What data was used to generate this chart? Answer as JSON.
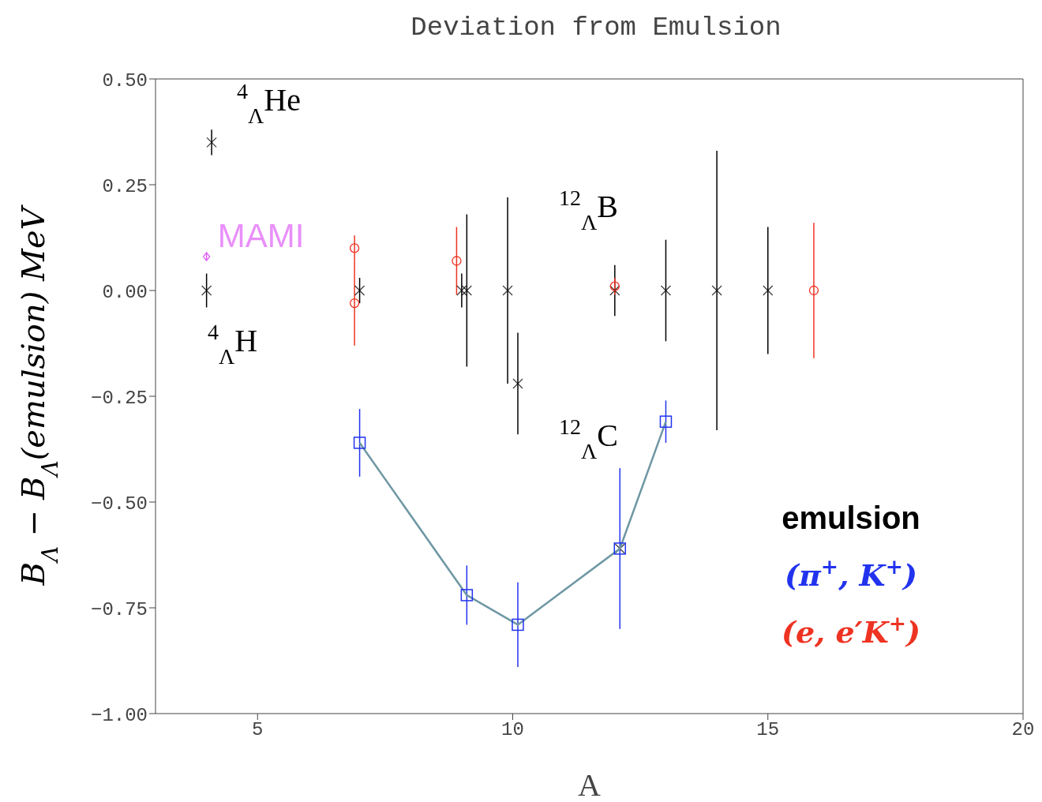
{
  "chart_data": {
    "type": "scatter",
    "title": "Deviation from Emulsion",
    "xlabel": "A",
    "ylabel": "B$_{Λ}$ − B$_{Λ}$(emulsion) MeV",
    "xlim": [
      3,
      20
    ],
    "xticks": [
      5,
      10,
      15,
      20
    ],
    "ylim": [
      -1,
      0.5
    ],
    "yticks": [
      {
        "value": -1,
        "label": "−1.00"
      },
      {
        "value": -0.75,
        "label": "−0.75"
      },
      {
        "value": -0.5,
        "label": "−0.50"
      },
      {
        "value": -0.25,
        "label": "−0.25"
      },
      {
        "value": 0,
        "label": "0.00"
      },
      {
        "value": 0.25,
        "label": "0.25"
      },
      {
        "value": 0.5,
        "label": "0.50"
      }
    ],
    "grid": false,
    "legend": "bottom right",
    "series": [
      {
        "name": "emulsion",
        "color": "#000000",
        "marker": "cross",
        "x": [
          4,
          4.1,
          7,
          9,
          9.1,
          9.9,
          10.1,
          12,
          12.1,
          13,
          14,
          15
        ],
        "values": [
          0,
          0.35,
          0,
          0,
          0,
          0,
          -0.22,
          0,
          -0.61,
          0,
          0,
          0
        ],
        "errors": [
          0.04,
          0.03,
          0.03,
          0.04,
          0.18,
          0.22,
          0.12,
          0.06,
          null,
          0.12,
          0.33,
          0.15
        ]
      },
      {
        "type": "line",
        "color": "#6e97a3",
        "marker": "none",
        "x": [
          7,
          9.1,
          10.1,
          12.1,
          13
        ],
        "values": [
          -0.36,
          -0.72,
          -0.79,
          -0.61,
          -0.31
        ]
      },
      {
        "name": "(π$^{+}$, K$^{+}$)",
        "color": "#2233ee",
        "marker": "square",
        "x": [
          7,
          9.1,
          10.1,
          12.1,
          13
        ],
        "values": [
          -0.36,
          -0.72,
          -0.79,
          -0.61,
          -0.31
        ],
        "errors": [
          0.08,
          0.07,
          0.1,
          0.19,
          0.05
        ]
      },
      {
        "name": "(e, e′K$^{+}$)",
        "color": "#ee3322",
        "marker": "circle",
        "x": [
          6.9,
          6.9,
          8.9,
          12,
          15.9
        ],
        "values": [
          0.1,
          -0.03,
          0.07,
          0.01,
          0
        ],
        "errors": [
          0.03,
          0.1,
          0.08,
          0.02,
          0.16
        ]
      },
      {
        "name": "MAMI",
        "color": "#e060f8",
        "marker": "diamond",
        "x": [
          4
        ],
        "values": [
          0.08
        ],
        "errors": [
          0.01
        ]
      }
    ],
    "annotations": [
      "$^{4}$$_{Λ}$He",
      "$^{4}$$_{Λ}$H",
      "$^{12}$$_{Λ}$B",
      "$^{12}$$_{Λ}$C"
    ]
  }
}
